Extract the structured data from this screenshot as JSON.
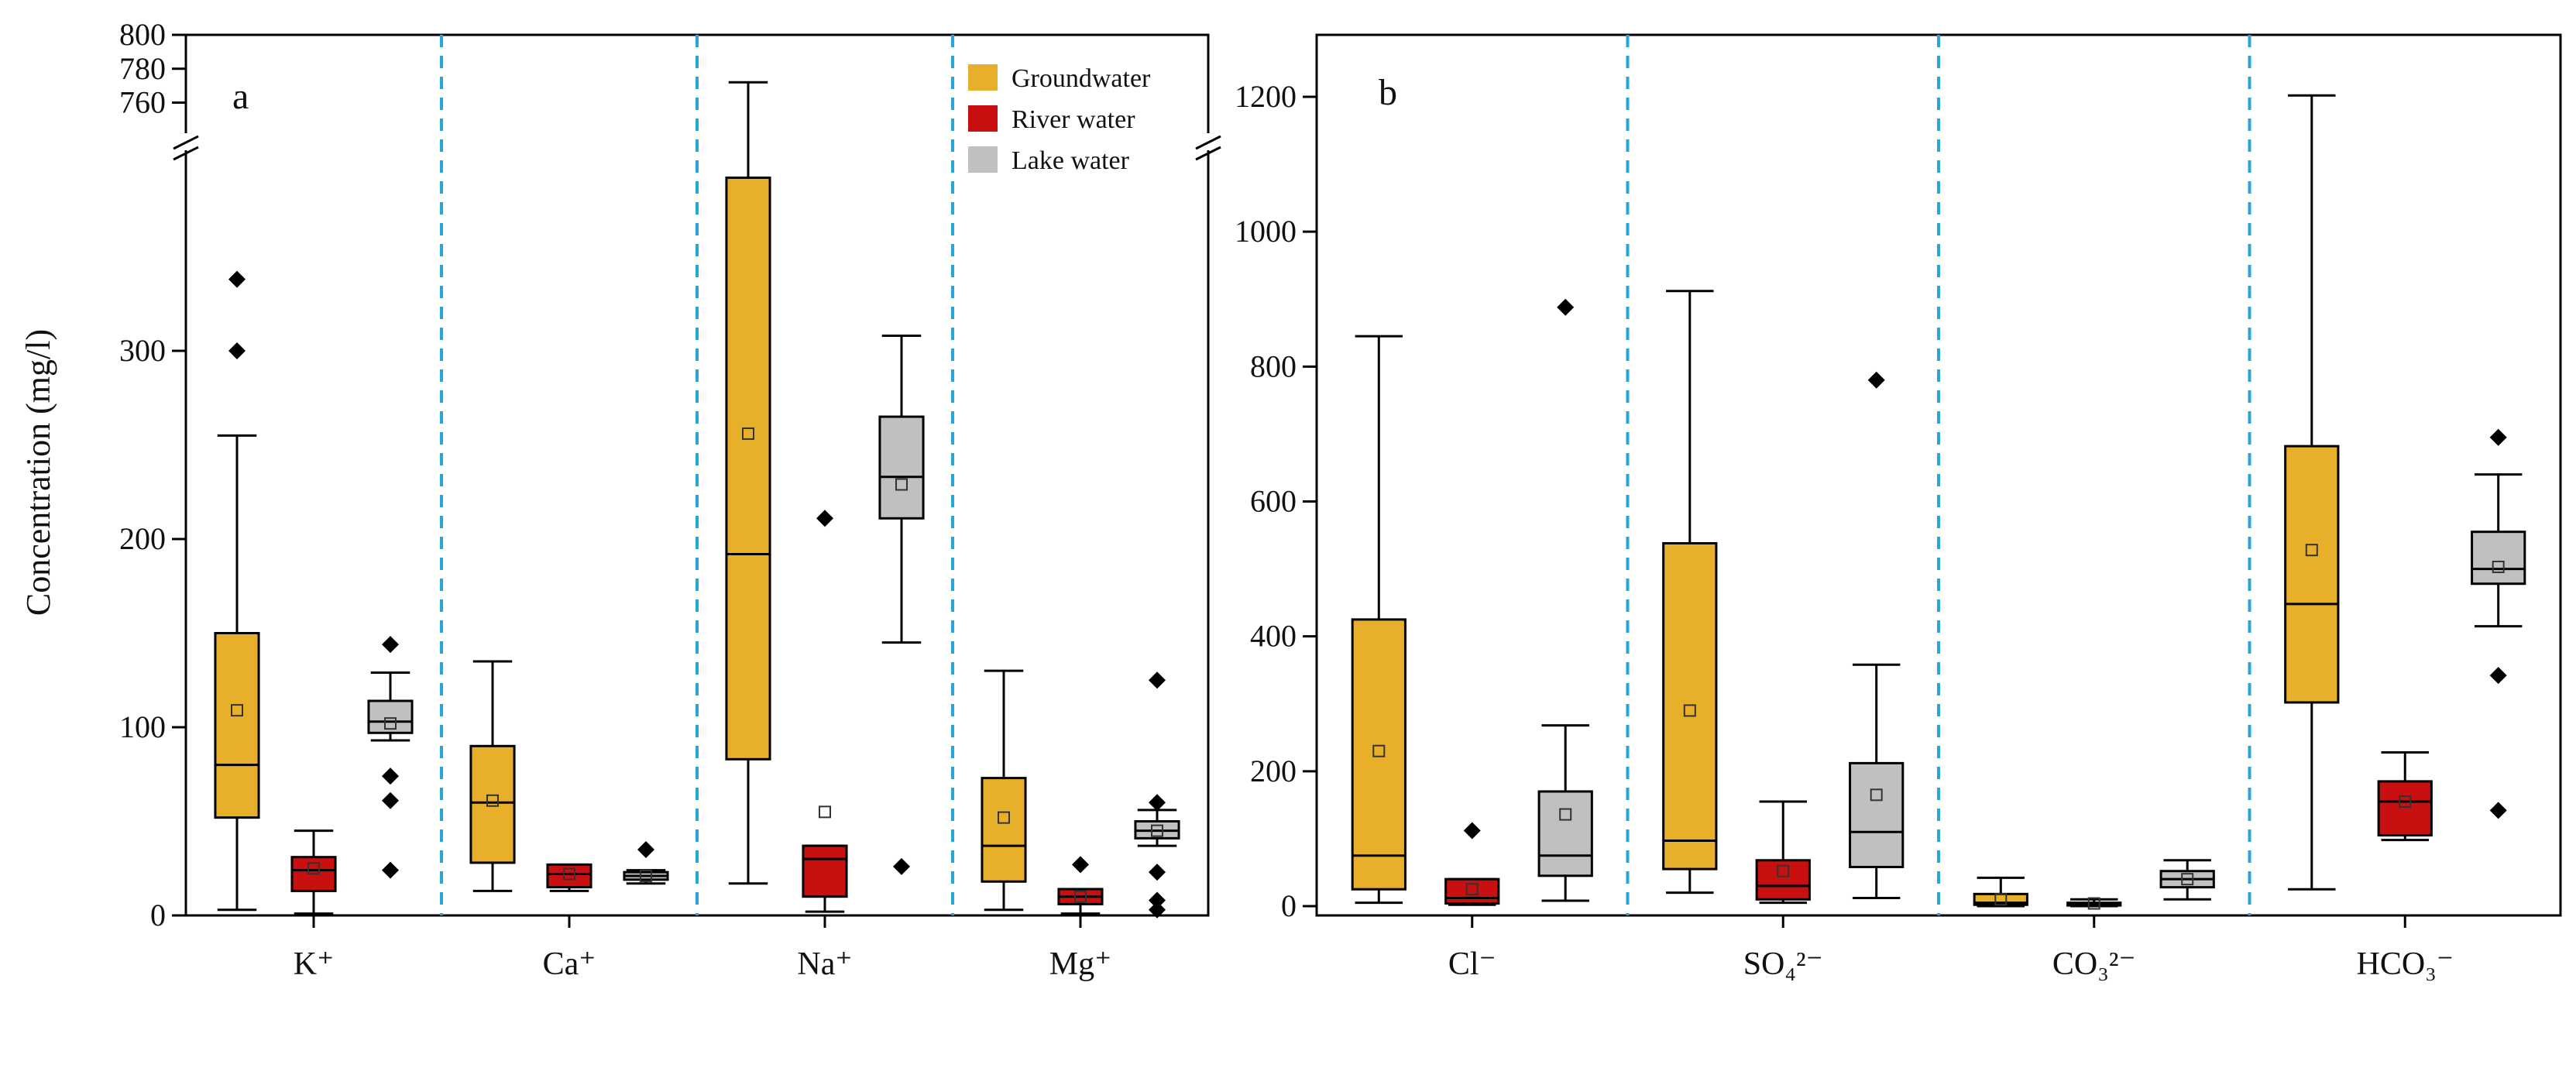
{
  "colors": {
    "groundwater": "#E8B02A",
    "river": "#C81010",
    "lake": "#C0C0C0",
    "separator": "#27A6D8",
    "axis": "#000000"
  },
  "chart_data": [
    {
      "type": "box",
      "panel_label": "a",
      "ylabel": "Concentration (mg/l)",
      "axis_break": true,
      "ylim": [
        0,
        800
      ],
      "lower_segment": [
        0,
        400
      ],
      "upper_segment": [
        750,
        800
      ],
      "yticks": [
        "0",
        "100",
        "200",
        "300",
        "760",
        "780",
        "800"
      ],
      "categories": [
        "K⁺",
        "Ca⁺",
        "Na⁺",
        "Mg⁺"
      ],
      "legend": {
        "placement": "top-right",
        "entries": [
          "Groundwater",
          "River water",
          "Lake water"
        ]
      },
      "series": [
        {
          "name": "Groundwater",
          "boxes": [
            {
              "min": 3,
              "q1": 52,
              "median": 80,
              "q3": 150,
              "max": 255,
              "mean": 109,
              "outliers": [
                300,
                338
              ]
            },
            {
              "min": 13,
              "q1": 28,
              "median": 60,
              "q3": 90,
              "max": 135,
              "mean": 61,
              "outliers": []
            },
            {
              "min": 17,
              "q1": 83,
              "median": 192,
              "q3": 392,
              "max": 772,
              "mean": 256,
              "outliers": []
            },
            {
              "min": 3,
              "q1": 18,
              "median": 37,
              "q3": 73,
              "max": 130,
              "mean": 52,
              "outliers": []
            }
          ]
        },
        {
          "name": "River water",
          "boxes": [
            {
              "min": 1,
              "q1": 13,
              "median": 24,
              "q3": 31,
              "max": 45,
              "mean": 25,
              "outliers": []
            },
            {
              "min": 13,
              "q1": 15,
              "median": 22,
              "q3": 27,
              "max": 27,
              "mean": 22,
              "outliers": []
            },
            {
              "min": 2,
              "q1": 10,
              "median": 30,
              "q3": 37,
              "max": 37,
              "mean": 55,
              "outliers": [
                211
              ]
            },
            {
              "min": 1,
              "q1": 6,
              "median": 10,
              "q3": 14,
              "max": 14,
              "mean": 10,
              "outliers": [
                27
              ]
            }
          ]
        },
        {
          "name": "Lake water",
          "boxes": [
            {
              "min": 93,
              "q1": 97,
              "median": 103,
              "q3": 114,
              "max": 129,
              "mean": 102,
              "outliers": [
                24,
                61,
                74,
                144
              ]
            },
            {
              "min": 17,
              "q1": 19,
              "median": 21,
              "q3": 23,
              "max": 24,
              "mean": 21,
              "outliers": [
                35
              ]
            },
            {
              "min": 145,
              "q1": 211,
              "median": 233,
              "q3": 265,
              "max": 308,
              "mean": 229,
              "outliers": [
                26
              ]
            },
            {
              "min": 37,
              "q1": 41,
              "median": 45,
              "q3": 50,
              "max": 56,
              "mean": 45,
              "outliers": [
                3,
                8,
                23,
                60,
                125
              ]
            }
          ]
        }
      ]
    },
    {
      "type": "box",
      "panel_label": "b",
      "ylabel": "",
      "axis_break": false,
      "ylim": [
        0,
        1300
      ],
      "yticks": [
        "0",
        "200",
        "400",
        "600",
        "800",
        "1000",
        "1200"
      ],
      "categories": [
        "Cl⁻",
        "SO₄²⁻",
        "CO₃²⁻",
        "HCO₃⁻"
      ],
      "series": [
        {
          "name": "Groundwater",
          "boxes": [
            {
              "min": 5,
              "q1": 25,
              "median": 75,
              "q3": 425,
              "max": 845,
              "mean": 230,
              "outliers": []
            },
            {
              "min": 20,
              "q1": 55,
              "median": 97,
              "q3": 538,
              "max": 912,
              "mean": 290,
              "outliers": []
            },
            {
              "min": 0,
              "q1": 2,
              "median": 5,
              "q3": 18,
              "max": 42,
              "mean": 10,
              "outliers": []
            },
            {
              "min": 25,
              "q1": 302,
              "median": 448,
              "q3": 682,
              "max": 1202,
              "mean": 528,
              "outliers": []
            }
          ]
        },
        {
          "name": "River water",
          "boxes": [
            {
              "min": 2,
              "q1": 4,
              "median": 12,
              "q3": 40,
              "max": 40,
              "mean": 25,
              "outliers": [
                112
              ]
            },
            {
              "min": 5,
              "q1": 10,
              "median": 30,
              "q3": 68,
              "max": 155,
              "mean": 52,
              "outliers": []
            },
            {
              "min": 0,
              "q1": 1,
              "median": 3,
              "q3": 5,
              "max": 10,
              "mean": 4,
              "outliers": []
            },
            {
              "min": 98,
              "q1": 105,
              "median": 155,
              "q3": 185,
              "max": 228,
              "mean": 155,
              "outliers": []
            }
          ]
        },
        {
          "name": "Lake water",
          "boxes": [
            {
              "min": 8,
              "q1": 45,
              "median": 75,
              "q3": 170,
              "max": 268,
              "mean": 136,
              "outliers": [
                888
              ]
            },
            {
              "min": 12,
              "q1": 58,
              "median": 110,
              "q3": 212,
              "max": 358,
              "mean": 165,
              "outliers": [
                780
              ]
            },
            {
              "min": 10,
              "q1": 28,
              "median": 40,
              "q3": 52,
              "max": 68,
              "mean": 40,
              "outliers": []
            },
            {
              "min": 415,
              "q1": 478,
              "median": 500,
              "q3": 555,
              "max": 640,
              "mean": 503,
              "outliers": [
                142,
                342,
                695
              ]
            }
          ]
        }
      ]
    }
  ]
}
